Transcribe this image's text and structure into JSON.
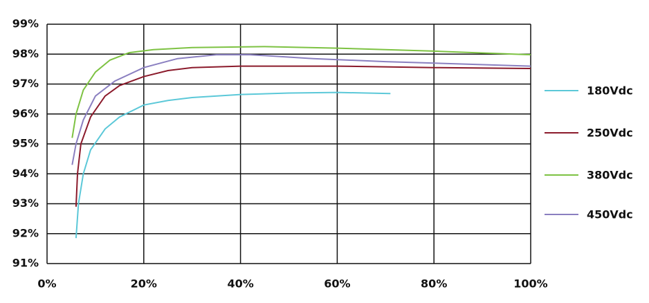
{
  "chart_data": {
    "type": "line",
    "xlim": [
      0,
      100
    ],
    "xticks": [
      {
        "value": 0,
        "label": "0%"
      },
      {
        "value": 20,
        "label": "20%"
      },
      {
        "value": 40,
        "label": "40%"
      },
      {
        "value": 60,
        "label": "60%"
      },
      {
        "value": 80,
        "label": "80%"
      },
      {
        "value": 100,
        "label": "100%"
      }
    ],
    "ylim": [
      91,
      99
    ],
    "yticks": [
      {
        "value": 91,
        "label": "91%"
      },
      {
        "value": 92,
        "label": "92%"
      },
      {
        "value": 93,
        "label": "93%"
      },
      {
        "value": 94,
        "label": "94%"
      },
      {
        "value": 95,
        "label": "95%"
      },
      {
        "value": 96,
        "label": "96%"
      },
      {
        "value": 97,
        "label": "97%"
      },
      {
        "value": 98,
        "label": "98%"
      },
      {
        "value": 99,
        "label": "99%"
      }
    ],
    "grid": true,
    "legend": "right",
    "series": [
      {
        "name": "180Vdc",
        "color": "#5bc8d8",
        "x": [
          6,
          6.5,
          7.5,
          9,
          12,
          15,
          20,
          25,
          30,
          40,
          50,
          60,
          71
        ],
        "values": [
          91.85,
          93,
          94,
          94.8,
          95.5,
          95.9,
          96.3,
          96.45,
          96.55,
          96.65,
          96.7,
          96.72,
          96.68
        ]
      },
      {
        "name": "250Vdc",
        "color": "#8b1a2b",
        "x": [
          6,
          6.3,
          7,
          9,
          12,
          15,
          20,
          25,
          30,
          40,
          60,
          80,
          100
        ],
        "values": [
          92.9,
          94,
          95,
          95.9,
          96.6,
          96.95,
          97.25,
          97.45,
          97.55,
          97.6,
          97.6,
          97.55,
          97.52
        ]
      },
      {
        "name": "380Vdc",
        "color": "#7dc242",
        "x": [
          5.2,
          6,
          7.5,
          10,
          13,
          17,
          22,
          30,
          45,
          60,
          80,
          100
        ],
        "values": [
          95.2,
          96,
          96.8,
          97.4,
          97.8,
          98.05,
          98.15,
          98.22,
          98.25,
          98.2,
          98.1,
          97.98
        ]
      },
      {
        "name": "450Vdc",
        "color": "#8a7fc0",
        "x": [
          5.2,
          6,
          7.5,
          10,
          14,
          20,
          27,
          35,
          42,
          55,
          70,
          100
        ],
        "values": [
          94.3,
          95,
          95.8,
          96.6,
          97.1,
          97.55,
          97.85,
          97.98,
          97.98,
          97.85,
          97.75,
          97.6
        ]
      }
    ]
  }
}
